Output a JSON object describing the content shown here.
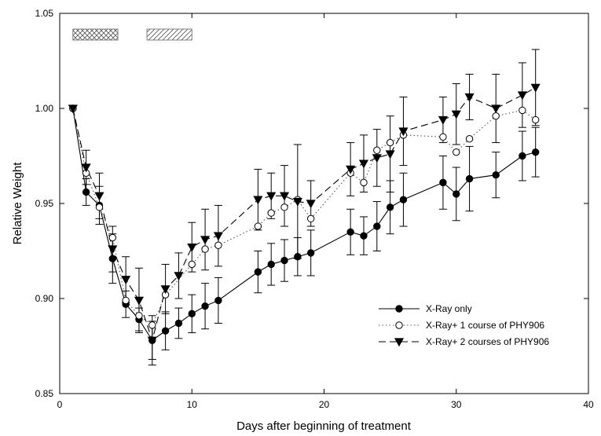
{
  "chart_data": {
    "type": "line",
    "title": "",
    "xlabel": "Days after beginning of treatment",
    "ylabel": "Relative Weight",
    "xlim": [
      0,
      40
    ],
    "ylim": [
      0.85,
      1.05
    ],
    "x_ticks": [
      "0",
      "10",
      "20",
      "30",
      "40"
    ],
    "y_ticks": [
      "0.85",
      "0.90",
      "0.95",
      "1.00",
      "1.05"
    ],
    "grid": false,
    "legend_position": "bottom-right",
    "treatment_bars": [
      {
        "start": 1,
        "end": 4.4,
        "pattern": "crosshatch"
      },
      {
        "start": 6.6,
        "end": 10,
        "pattern": "diagonal-hatch"
      }
    ],
    "series": [
      {
        "name": "X-Ray only",
        "marker": "filled-circle",
        "line_style": "solid",
        "x": [
          1,
          2,
          3,
          4,
          5,
          6,
          7,
          8,
          9,
          10,
          11,
          12,
          15,
          16,
          17,
          18,
          19,
          22,
          23,
          24,
          25,
          26,
          29,
          30,
          31,
          33,
          35,
          36
        ],
        "y": [
          1.0,
          0.956,
          0.949,
          0.921,
          0.897,
          0.889,
          0.878,
          0.883,
          0.887,
          0.892,
          0.896,
          0.899,
          0.914,
          0.918,
          0.92,
          0.922,
          0.924,
          0.935,
          0.933,
          0.938,
          0.948,
          0.952,
          0.961,
          0.955,
          0.963,
          0.965,
          0.975,
          0.977
        ],
        "err": [
          0,
          0.007,
          0.01,
          0.013,
          0.007,
          0.006,
          0.01,
          0.01,
          0.008,
          0.01,
          0.012,
          0.012,
          0.011,
          0.011,
          0.011,
          0.01,
          0.012,
          0.012,
          0.01,
          0.013,
          0.014,
          0.014,
          0.014,
          0.014,
          0.017,
          0.012,
          0.013,
          0.013
        ]
      },
      {
        "name": "X-Ray+ 1 course of PHY906",
        "marker": "open-circle",
        "line_style": "dotted",
        "x": [
          1,
          2,
          3,
          4,
          5,
          6,
          7,
          8,
          10,
          11,
          12,
          15,
          16,
          17,
          18,
          19,
          22,
          23,
          24,
          25,
          26,
          29,
          30,
          31,
          33,
          35,
          36
        ],
        "y": [
          1.0,
          0.966,
          0.948,
          0.932,
          0.899,
          0.891,
          0.886,
          0.902,
          0.918,
          0.926,
          0.928,
          0.938,
          0.945,
          0.948,
          0.952,
          0.942,
          0.966,
          0.961,
          0.978,
          0.982,
          0.986,
          0.985,
          0.977,
          0.984,
          0.996,
          0.999,
          0.994
        ]
      },
      {
        "name": "X-Ray+ 2 courses of PHY906",
        "marker": "filled-triangle-down",
        "line_style": "dashed",
        "x": [
          1,
          2,
          3,
          4,
          5,
          6,
          7,
          8,
          9,
          10,
          11,
          12,
          15,
          16,
          17,
          18,
          19,
          22,
          23,
          24,
          25,
          26,
          29,
          30,
          31,
          33,
          35,
          36
        ],
        "y": [
          1.0,
          0.969,
          0.954,
          0.926,
          0.91,
          0.899,
          0.878,
          0.905,
          0.912,
          0.927,
          0.931,
          0.933,
          0.952,
          0.954,
          0.954,
          0.951,
          0.95,
          0.968,
          0.971,
          0.974,
          0.976,
          0.988,
          0.994,
          0.997,
          1.006,
          1.0,
          1.007,
          1.011
        ],
        "err": [
          0,
          0.009,
          0.012,
          0.012,
          0.012,
          0.017,
          0.013,
          0.013,
          0.012,
          0.013,
          0.016,
          0.016,
          0.016,
          0.012,
          0.016,
          0.03,
          0.012,
          0.014,
          0.015,
          0.015,
          0.02,
          0.018,
          0.012,
          0.016,
          0.012,
          0.018,
          0.017,
          0.02
        ]
      }
    ]
  }
}
